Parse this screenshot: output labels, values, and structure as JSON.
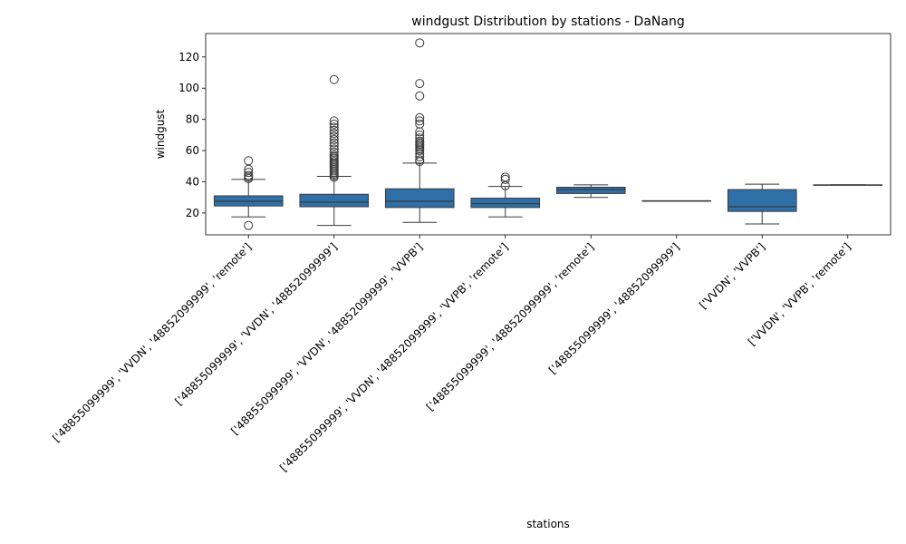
{
  "chart_data": {
    "type": "box",
    "title": "windgust Distribution by stations - DaNang",
    "xlabel": "stations",
    "ylabel": "windgust",
    "ylim": [
      6,
      135
    ],
    "yticks": [
      20,
      40,
      60,
      80,
      100,
      120
    ],
    "grid": false,
    "box_color": "#2f70a9",
    "line_color": "#3a3a3a",
    "categories": [
      "['48855099999', 'VVDN', '48852099999', 'remote']",
      "['48855099999', 'VVDN', '48852099999']",
      "['48855099999', 'VVDN', '48852099999', 'VVPB']",
      "['48855099999', 'VVDN', '48852099999', 'VVPB', 'remote']",
      "['48855099999', '48852099999', 'remote']",
      "['48855099999', '48852099999']",
      "['VVDN', 'VVPB']",
      "['VVDN', 'VVPB', 'remote']"
    ],
    "boxes": [
      {
        "whisker_low": 17.5,
        "q1": 24.5,
        "median": 27.5,
        "q3": 31,
        "whisker_high": 41.5,
        "outliers": [
          12,
          42,
          43,
          44,
          46,
          48,
          53.5
        ]
      },
      {
        "whisker_low": 12,
        "q1": 24,
        "median": 27,
        "q3": 32,
        "whisker_high": 43.5,
        "outliers": [
          43,
          44,
          45,
          46,
          47,
          48,
          49,
          50,
          51,
          52,
          53,
          54,
          55,
          56,
          57,
          59,
          61,
          63,
          65,
          67,
          69,
          71,
          73,
          75,
          77,
          79,
          105.5
        ]
      },
      {
        "whisker_low": 14,
        "q1": 23.5,
        "median": 27.5,
        "q3": 35.5,
        "whisker_high": 52,
        "outliers": [
          53,
          54,
          56,
          58,
          60,
          61,
          62,
          63,
          64,
          65,
          66,
          68,
          70,
          72,
          77,
          79,
          81,
          95,
          103,
          129
        ]
      },
      {
        "whisker_low": 17.5,
        "q1": 23.5,
        "median": 26,
        "q3": 29.5,
        "whisker_high": 37,
        "outliers": [
          37.5,
          41.5,
          43
        ]
      },
      {
        "whisker_low": 30,
        "q1": 32.5,
        "median": 35,
        "q3": 36.5,
        "whisker_high": 38,
        "outliers": []
      },
      {
        "whisker_low": 27.8,
        "q1": 27.8,
        "median": 27.8,
        "q3": 27.8,
        "whisker_high": 27.8,
        "outliers": []
      },
      {
        "whisker_low": 13,
        "q1": 21,
        "median": 24,
        "q3": 35,
        "whisker_high": 38.5,
        "outliers": []
      },
      {
        "whisker_low": 38,
        "q1": 38,
        "median": 38,
        "q3": 38,
        "whisker_high": 38,
        "outliers": []
      }
    ]
  }
}
